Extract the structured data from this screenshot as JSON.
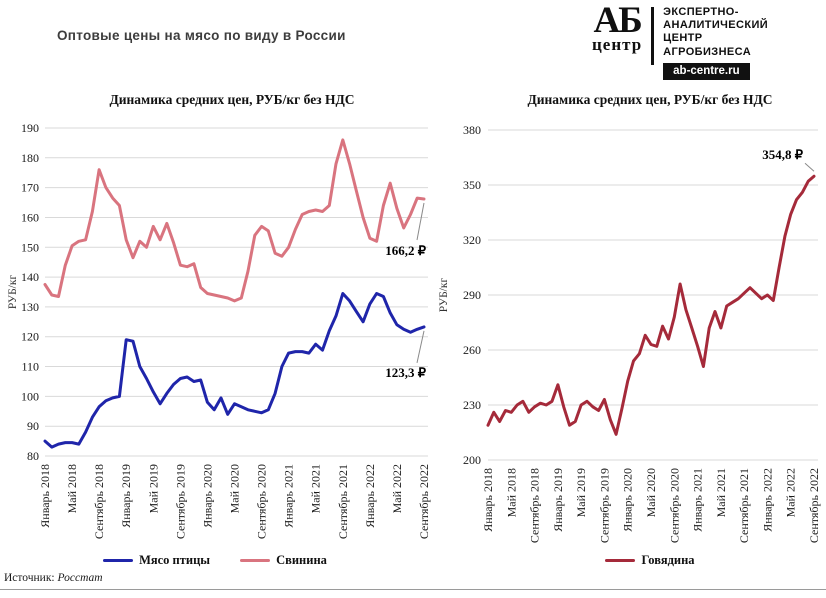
{
  "page": {
    "title": "Оптовые цены на мясо по виду в России",
    "source_label": "Источник:",
    "source_value": "Росстат"
  },
  "logo": {
    "abbr_top": "АБ",
    "abbr_bottom": "центр",
    "lines": [
      "ЭКСПЕРТНО-",
      "АНАЛИТИЧЕСКИЙ",
      "ЦЕНТР",
      "АГРОБИЗНЕСА"
    ],
    "site": "ab-centre.ru"
  },
  "chart_data": [
    {
      "type": "line",
      "title": "Динамика средних цен, РУБ/кг без НДС",
      "ylabel": "РУБ/кг",
      "ylim": [
        80,
        190
      ],
      "ytick_step": 10,
      "grid": true,
      "legend_position": "bottom",
      "x_range": "Январь 2018 — Сентябрь 2022, помесячно",
      "x_tick_every": 4,
      "x_tick_labels": [
        "Январь 2018",
        "Май 2018",
        "Сентябрь 2018",
        "Январь 2019",
        "Май 2019",
        "Сентябрь 2019",
        "Январь 2020",
        "Май 2020",
        "Сентябрь 2020",
        "Январь 2021",
        "Май 2021",
        "Сентябрь 2021",
        "Январь 2022",
        "Май 2022",
        "Сентябрь 2022"
      ],
      "series": [
        {
          "name": "Мясо птицы",
          "color": "#1f25aa",
          "annotation": "123,3 ₽",
          "values": [
            85,
            83,
            84,
            84.5,
            84.5,
            84,
            88,
            93,
            96.5,
            98.5,
            99.5,
            100,
            119,
            118.5,
            110,
            106,
            101.5,
            97.5,
            101,
            104,
            106,
            106.5,
            105,
            105.5,
            98,
            95.5,
            99.5,
            94,
            97.5,
            96.5,
            95.5,
            95,
            94.5,
            95.5,
            101,
            110,
            114.5,
            115,
            115,
            114.5,
            117.5,
            115.5,
            122,
            127,
            134.5,
            132,
            128.5,
            125,
            131,
            134.5,
            133.5,
            128,
            124,
            122.5,
            121.5,
            122.5,
            123.3
          ]
        },
        {
          "name": "Свинина",
          "color": "#d9747f",
          "annotation": "166,2 ₽",
          "values": [
            137.5,
            134,
            133.5,
            144,
            150.5,
            152,
            152.5,
            162,
            176,
            170,
            166.5,
            164,
            152.5,
            146.5,
            152,
            150,
            157,
            152.5,
            158,
            151.5,
            144,
            143.5,
            144.5,
            136.5,
            134.5,
            134,
            133.5,
            133,
            132,
            133,
            142,
            154,
            157,
            155.5,
            148,
            147,
            150,
            156,
            161,
            162,
            162.5,
            162,
            164,
            178,
            186,
            178,
            169,
            160,
            153,
            152,
            164,
            171.5,
            163,
            156.5,
            161,
            166.5,
            166.2
          ]
        }
      ]
    },
    {
      "type": "line",
      "title": "Динамика средних цен, РУБ/кг без НДС",
      "ylabel": "РУБ/кг",
      "ylim": [
        200,
        380
      ],
      "ytick_step": 30,
      "grid": true,
      "legend_position": "bottom",
      "x_range": "Январь 2018 — Сентябрь 2022, помесячно",
      "x_tick_every": 4,
      "x_tick_labels": [
        "Январь 2018",
        "Май 2018",
        "Сентябрь 2018",
        "Январь 2019",
        "Май 2019",
        "Сентябрь 2019",
        "Январь 2020",
        "Май 2020",
        "Сентябрь 2020",
        "Январь 2021",
        "Май 2021",
        "Сентябрь 2021",
        "Январь 2022",
        "Май 2022",
        "Сентябрь 2022"
      ],
      "series": [
        {
          "name": "Говядина",
          "color": "#a52a3a",
          "annotation": "354,8 ₽",
          "values": [
            219,
            226,
            221,
            227,
            226,
            230,
            232,
            226,
            229,
            231,
            230,
            232,
            241,
            229,
            219,
            221,
            230,
            232,
            229,
            227,
            233,
            222,
            214,
            228,
            243,
            254,
            258,
            268,
            263,
            262,
            273,
            266,
            278,
            296,
            282,
            272,
            262,
            251,
            272,
            281,
            272,
            284,
            286,
            288,
            291,
            294,
            291,
            288,
            290,
            287,
            305,
            322,
            334,
            342,
            346,
            352,
            354.8
          ]
        }
      ]
    }
  ]
}
